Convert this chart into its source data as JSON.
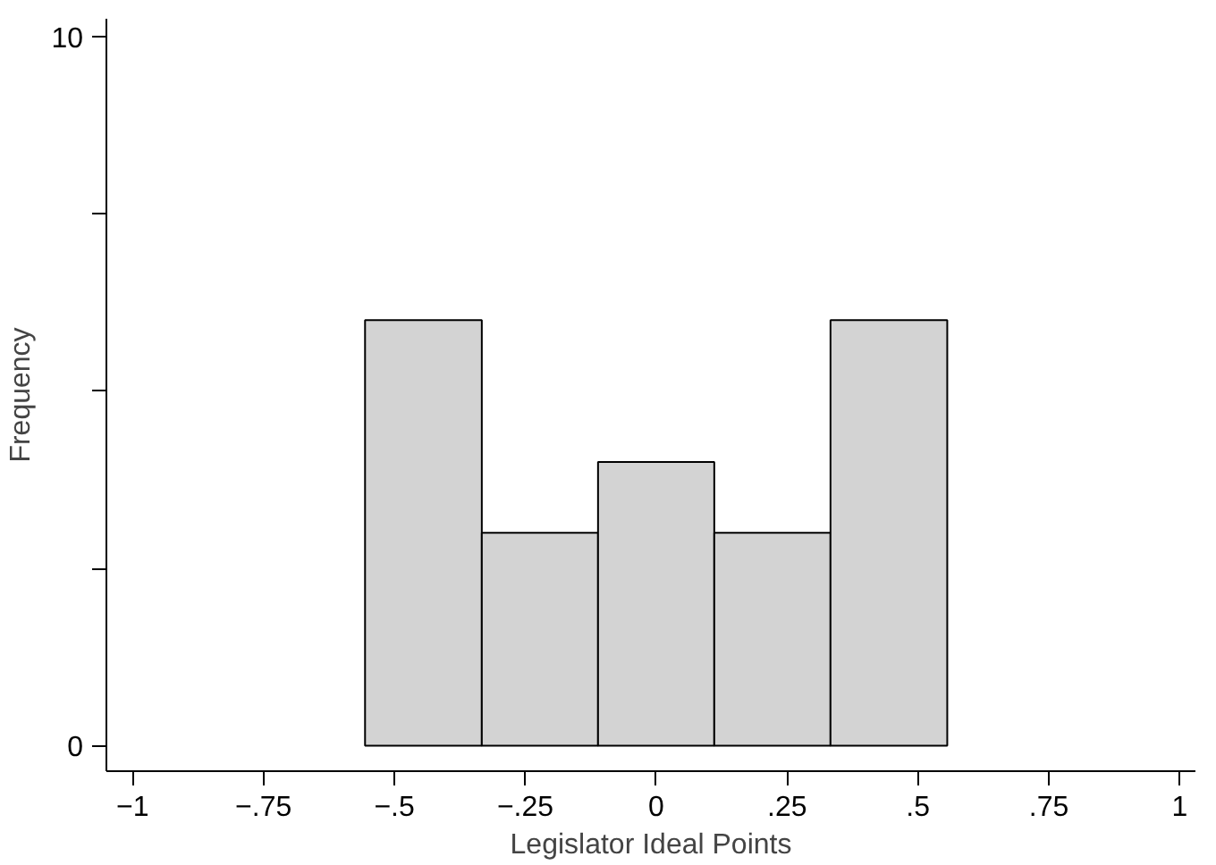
{
  "chart_data": {
    "type": "histogram",
    "xlabel": "Legislator Ideal Points",
    "ylabel": "Frequency",
    "bins": [
      -0.556,
      -0.333,
      -0.111,
      0.111,
      0.333,
      0.556
    ],
    "values": [
      6,
      3,
      4,
      3,
      6
    ],
    "color": "#d3d3d3",
    "xlim": [
      -1.05,
      1.03
    ],
    "ylim": [
      -0.36,
      10.25
    ],
    "xticks": [
      {
        "value": -1,
        "label": "−1"
      },
      {
        "value": -0.75,
        "label": "−.75"
      },
      {
        "value": -0.5,
        "label": "−.5"
      },
      {
        "value": -0.25,
        "label": "−.25"
      },
      0,
      {
        "value": 0.25,
        "label": ".25"
      },
      {
        "value": 0.5,
        "label": ".5"
      },
      {
        "value": 0.75,
        "label": ".75"
      },
      1
    ],
    "yticks": [
      0,
      {
        "value": 2.5,
        "label": null
      },
      {
        "value": 5,
        "label": null
      },
      {
        "value": 7.5,
        "label": null
      },
      10
    ],
    "grid": false
  }
}
